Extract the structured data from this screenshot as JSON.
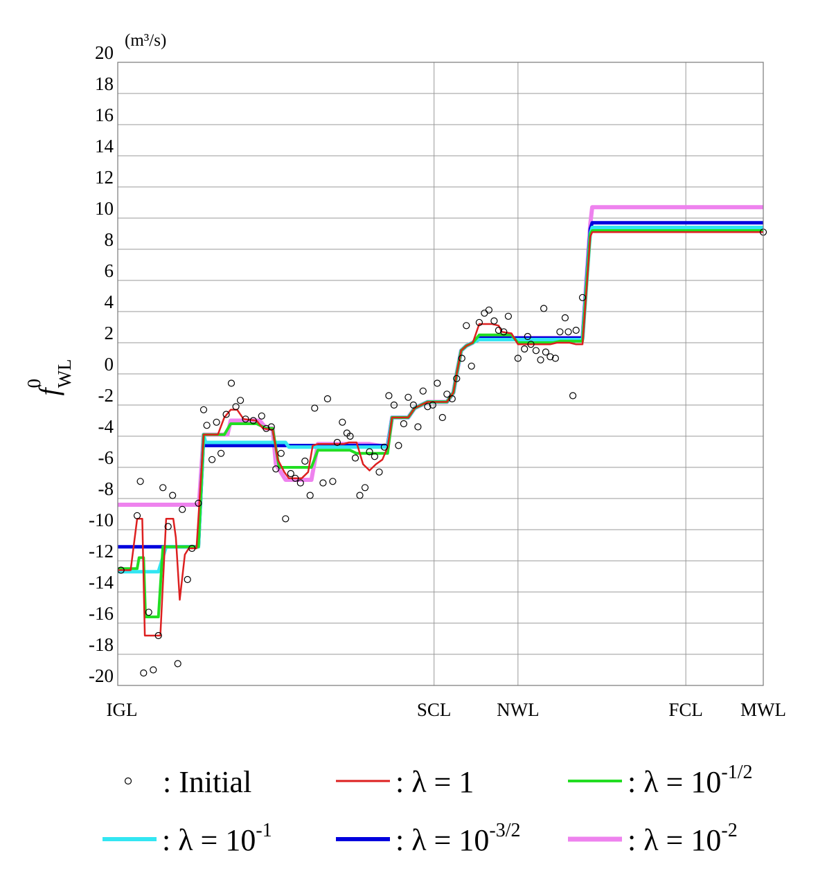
{
  "chart_data": {
    "type": "line",
    "unit_label": "(m³/s)",
    "ylabel": {
      "main": "f",
      "sub": "WL",
      "sup": "0"
    },
    "xlabel": "",
    "ylim": [
      -20,
      20
    ],
    "xlim": [
      0,
      100
    ],
    "yticks": [
      "20",
      "18",
      "16",
      "14",
      "12",
      "10",
      "8",
      "6",
      "4",
      "2",
      "0",
      "-2",
      "-4",
      "-6",
      "-8",
      "-10",
      "-12",
      "-14",
      "-16",
      "-18",
      "-20"
    ],
    "xticks": [
      {
        "label": "IGL",
        "x": 0
      },
      {
        "label": "SCL",
        "x": 49
      },
      {
        "label": "NWL",
        "x": 62
      },
      {
        "label": "FCL",
        "x": 88
      },
      {
        "label": "MWL",
        "x": 100
      }
    ],
    "grid": true,
    "legend_position": "bottom",
    "initial": {
      "name": "Initial",
      "points": [
        [
          0.5,
          -12.6
        ],
        [
          3,
          -9.1
        ],
        [
          3.5,
          -6.9
        ],
        [
          4,
          -19.2
        ],
        [
          4.8,
          -15.3
        ],
        [
          5.5,
          -19
        ],
        [
          6.3,
          -16.8
        ],
        [
          7,
          -7.3
        ],
        [
          7.8,
          -9.8
        ],
        [
          8.5,
          -7.8
        ],
        [
          9.3,
          -18.6
        ],
        [
          10,
          -8.7
        ],
        [
          10.8,
          -13.2
        ],
        [
          11.5,
          -11.2
        ],
        [
          12.5,
          -8.3
        ],
        [
          13.3,
          -2.3
        ],
        [
          13.8,
          -3.3
        ],
        [
          14.6,
          -5.5
        ],
        [
          15.3,
          -3.1
        ],
        [
          16,
          -5.1
        ],
        [
          16.8,
          -2.6
        ],
        [
          17.6,
          -0.6
        ],
        [
          18.3,
          -2.1
        ],
        [
          19,
          -1.7
        ],
        [
          19.8,
          -2.9
        ],
        [
          21,
          -3
        ],
        [
          22.3,
          -2.7
        ],
        [
          23,
          -3.5
        ],
        [
          23.8,
          -3.4
        ],
        [
          24.5,
          -6.1
        ],
        [
          25.3,
          -5.1
        ],
        [
          26,
          -9.3
        ],
        [
          26.8,
          -6.4
        ],
        [
          27.5,
          -6.7
        ],
        [
          28.3,
          -7
        ],
        [
          29,
          -5.6
        ],
        [
          29.8,
          -7.8
        ],
        [
          30.5,
          -2.2
        ],
        [
          31.8,
          -7
        ],
        [
          32.5,
          -1.6
        ],
        [
          33.3,
          -6.9
        ],
        [
          34,
          -4.4
        ],
        [
          34.8,
          -3.1
        ],
        [
          35.5,
          -3.8
        ],
        [
          36,
          -4
        ],
        [
          36.8,
          -5.4
        ],
        [
          37.5,
          -7.8
        ],
        [
          38.3,
          -7.3
        ],
        [
          39,
          -5
        ],
        [
          39.8,
          -5.3
        ],
        [
          40.5,
          -6.3
        ],
        [
          41.3,
          -4.7
        ],
        [
          42,
          -1.4
        ],
        [
          42.8,
          -2
        ],
        [
          43.5,
          -4.6
        ],
        [
          44.3,
          -3.2
        ],
        [
          45,
          -1.5
        ],
        [
          45.8,
          -2
        ],
        [
          46.5,
          -3.4
        ],
        [
          47.3,
          -1.1
        ],
        [
          48,
          -2.1
        ],
        [
          48.8,
          -2
        ],
        [
          49.5,
          -0.6
        ],
        [
          50.3,
          -2.8
        ],
        [
          51,
          -1.3
        ],
        [
          51.8,
          -1.6
        ],
        [
          52.5,
          -0.3
        ],
        [
          53.3,
          1
        ],
        [
          54,
          3.1
        ],
        [
          54.8,
          0.5
        ],
        [
          56,
          3.3
        ],
        [
          56.8,
          3.9
        ],
        [
          57.5,
          4.1
        ],
        [
          58.3,
          3.4
        ],
        [
          59,
          2.8
        ],
        [
          59.8,
          2.7
        ],
        [
          60.5,
          3.7
        ],
        [
          62,
          1
        ],
        [
          63,
          1.6
        ],
        [
          63.5,
          2.4
        ],
        [
          64,
          1.9
        ],
        [
          64.8,
          1.5
        ],
        [
          65.5,
          0.9
        ],
        [
          66,
          4.2
        ],
        [
          66.3,
          1.4
        ],
        [
          67,
          1.1
        ],
        [
          67.8,
          1
        ],
        [
          68.5,
          2.7
        ],
        [
          69.3,
          3.6
        ],
        [
          69.8,
          2.7
        ],
        [
          70.5,
          -1.4
        ],
        [
          71,
          2.8
        ],
        [
          72,
          4.9
        ],
        [
          100,
          9.1
        ]
      ]
    },
    "series": [
      {
        "name": "λ = 10^-2",
        "color": "#ee82ee",
        "width": 6,
        "points": [
          [
            0,
            -8.4
          ],
          [
            12.5,
            -8.4
          ],
          [
            12.6,
            -8.3
          ],
          [
            13.3,
            -3.9
          ],
          [
            17,
            -3.9
          ],
          [
            17.5,
            -3
          ],
          [
            22,
            -3
          ],
          [
            23,
            -3.5
          ],
          [
            24,
            -3.5
          ],
          [
            24.5,
            -5.8
          ],
          [
            26,
            -6.8
          ],
          [
            30,
            -6.8
          ],
          [
            31,
            -4.5
          ],
          [
            39,
            -4.5
          ],
          [
            41.8,
            -4.7
          ],
          [
            42.5,
            -2.8
          ],
          [
            45,
            -2.8
          ],
          [
            46,
            -2.2
          ],
          [
            47,
            -2
          ],
          [
            48,
            -1.8
          ],
          [
            51,
            -1.8
          ],
          [
            52,
            -1.2
          ],
          [
            52.5,
            0
          ],
          [
            53.2,
            1.5
          ],
          [
            54,
            1.8
          ],
          [
            55,
            2
          ],
          [
            56,
            2.4
          ],
          [
            60,
            2.4
          ],
          [
            61,
            2.3
          ],
          [
            70,
            2.3
          ],
          [
            72,
            2.3
          ],
          [
            73.2,
            9.6
          ],
          [
            73.5,
            10.7
          ],
          [
            100,
            10.7
          ]
        ]
      },
      {
        "name": "λ = 10^-3/2",
        "color": "#0000dd",
        "width": 5,
        "points": [
          [
            0,
            -11.1
          ],
          [
            12.5,
            -11.1
          ],
          [
            13.3,
            -4
          ],
          [
            13.6,
            -4.6
          ],
          [
            41.8,
            -4.6
          ],
          [
            42.5,
            -2.8
          ],
          [
            45,
            -2.8
          ],
          [
            46,
            -2.2
          ],
          [
            47,
            -2
          ],
          [
            48,
            -1.8
          ],
          [
            51,
            -1.8
          ],
          [
            52,
            -1.2
          ],
          [
            52.5,
            0
          ],
          [
            53.2,
            1.5
          ],
          [
            54,
            1.8
          ],
          [
            55,
            2
          ],
          [
            56,
            2.3
          ],
          [
            72,
            2.3
          ],
          [
            73.2,
            9.3
          ],
          [
            73.5,
            9.7
          ],
          [
            100,
            9.7
          ]
        ]
      },
      {
        "name": "λ = 10^-1",
        "color": "#33e6f2",
        "width": 5,
        "points": [
          [
            0,
            -12.7
          ],
          [
            6.3,
            -12.7
          ],
          [
            7.5,
            -11.1
          ],
          [
            12.5,
            -11.1
          ],
          [
            13.3,
            -3.9
          ],
          [
            13.6,
            -4.4
          ],
          [
            26,
            -4.4
          ],
          [
            26.5,
            -4.7
          ],
          [
            41.8,
            -4.7
          ],
          [
            42.5,
            -2.8
          ],
          [
            45,
            -2.8
          ],
          [
            46,
            -2.2
          ],
          [
            47,
            -2
          ],
          [
            48,
            -1.8
          ],
          [
            51,
            -1.8
          ],
          [
            52,
            -1.2
          ],
          [
            52.5,
            0
          ],
          [
            53.2,
            1.5
          ],
          [
            54,
            1.8
          ],
          [
            55,
            2
          ],
          [
            56,
            2.2
          ],
          [
            72,
            2.2
          ],
          [
            73.2,
            9
          ],
          [
            73.5,
            9.4
          ],
          [
            100,
            9.4
          ]
        ]
      },
      {
        "name": "λ = 10^-1/2",
        "color": "#22dd22",
        "width": 4,
        "points": [
          [
            0,
            -12.5
          ],
          [
            3,
            -12.5
          ],
          [
            3.3,
            -11.8
          ],
          [
            4,
            -11.8
          ],
          [
            4.3,
            -15.6
          ],
          [
            6.3,
            -15.6
          ],
          [
            7,
            -11.1
          ],
          [
            12.5,
            -11.1
          ],
          [
            13.3,
            -3.9
          ],
          [
            16.5,
            -3.9
          ],
          [
            17.5,
            -3.2
          ],
          [
            21.5,
            -3.2
          ],
          [
            23,
            -3.5
          ],
          [
            24,
            -3.5
          ],
          [
            25,
            -6
          ],
          [
            30,
            -6
          ],
          [
            31,
            -4.9
          ],
          [
            36,
            -4.9
          ],
          [
            37,
            -5.1
          ],
          [
            41.8,
            -5.1
          ],
          [
            42.5,
            -2.8
          ],
          [
            45,
            -2.8
          ],
          [
            46,
            -2.2
          ],
          [
            47,
            -2
          ],
          [
            48,
            -1.8
          ],
          [
            51,
            -1.8
          ],
          [
            52,
            -1.2
          ],
          [
            52.5,
            0
          ],
          [
            53.2,
            1.5
          ],
          [
            54,
            1.8
          ],
          [
            55,
            2
          ],
          [
            56,
            2.5
          ],
          [
            61,
            2.5
          ],
          [
            62,
            2
          ],
          [
            67.5,
            2
          ],
          [
            68.5,
            2.1
          ],
          [
            72,
            2.1
          ],
          [
            73.2,
            9
          ],
          [
            73.5,
            9.2
          ],
          [
            100,
            9.2
          ]
        ]
      },
      {
        "name": "λ = 1",
        "color": "#dd1f1f",
        "width": 2.5,
        "points": [
          [
            0,
            -12.6
          ],
          [
            2,
            -12.6
          ],
          [
            3,
            -9.3
          ],
          [
            3.8,
            -9.3
          ],
          [
            4.2,
            -16.8
          ],
          [
            6.6,
            -16.8
          ],
          [
            7.5,
            -9.3
          ],
          [
            8.6,
            -9.3
          ],
          [
            9,
            -10.5
          ],
          [
            9.6,
            -14.5
          ],
          [
            10.4,
            -11.6
          ],
          [
            11,
            -11.2
          ],
          [
            12.2,
            -11.2
          ],
          [
            13.3,
            -3.9
          ],
          [
            15.5,
            -3.9
          ],
          [
            16.5,
            -2.8
          ],
          [
            17.5,
            -2.3
          ],
          [
            18.5,
            -2.3
          ],
          [
            19.5,
            -2.9
          ],
          [
            21.5,
            -3
          ],
          [
            22.5,
            -3.5
          ],
          [
            24,
            -3.6
          ],
          [
            24.8,
            -5.5
          ],
          [
            25.8,
            -6.3
          ],
          [
            26.5,
            -6.7
          ],
          [
            28.5,
            -6.7
          ],
          [
            29.5,
            -6.3
          ],
          [
            30.2,
            -4.6
          ],
          [
            31,
            -4.5
          ],
          [
            35,
            -4.5
          ],
          [
            35.8,
            -4.4
          ],
          [
            37,
            -4.4
          ],
          [
            38,
            -5.8
          ],
          [
            39,
            -6.2
          ],
          [
            40,
            -5.8
          ],
          [
            41,
            -5.5
          ],
          [
            41.8,
            -4.7
          ],
          [
            42.5,
            -2.8
          ],
          [
            45,
            -2.8
          ],
          [
            46,
            -2.2
          ],
          [
            47,
            -2
          ],
          [
            48,
            -1.8
          ],
          [
            51,
            -1.8
          ],
          [
            52,
            -1.2
          ],
          [
            52.5,
            0
          ],
          [
            53.2,
            1.5
          ],
          [
            54,
            1.8
          ],
          [
            55,
            2
          ],
          [
            56,
            3.2
          ],
          [
            58,
            3.2
          ],
          [
            59,
            3.1
          ],
          [
            59.5,
            2.7
          ],
          [
            61,
            2.6
          ],
          [
            62,
            1.9
          ],
          [
            67,
            1.9
          ],
          [
            68,
            2
          ],
          [
            70,
            2
          ],
          [
            71,
            1.9
          ],
          [
            72,
            1.9
          ],
          [
            73.2,
            8.8
          ],
          [
            73.5,
            9.1
          ],
          [
            100,
            9.1
          ]
        ]
      }
    ],
    "legend": [
      {
        "type": "marker",
        "label": ": Initial"
      },
      {
        "type": "line",
        "color": "#dd1f1f",
        "width": 3,
        "text": ": λ = 1",
        "sup": ""
      },
      {
        "type": "line",
        "color": "#22dd22",
        "width": 4,
        "text": ": λ = 10",
        "sup": "-1/2"
      },
      {
        "type": "line",
        "color": "#33e6f2",
        "width": 6,
        "text": ": λ = 10",
        "sup": "-1"
      },
      {
        "type": "line",
        "color": "#0000dd",
        "width": 6,
        "text": ": λ = 10",
        "sup": "-3/2"
      },
      {
        "type": "line",
        "color": "#ee82ee",
        "width": 7,
        "text": ": λ = 10",
        "sup": "-2"
      }
    ]
  }
}
